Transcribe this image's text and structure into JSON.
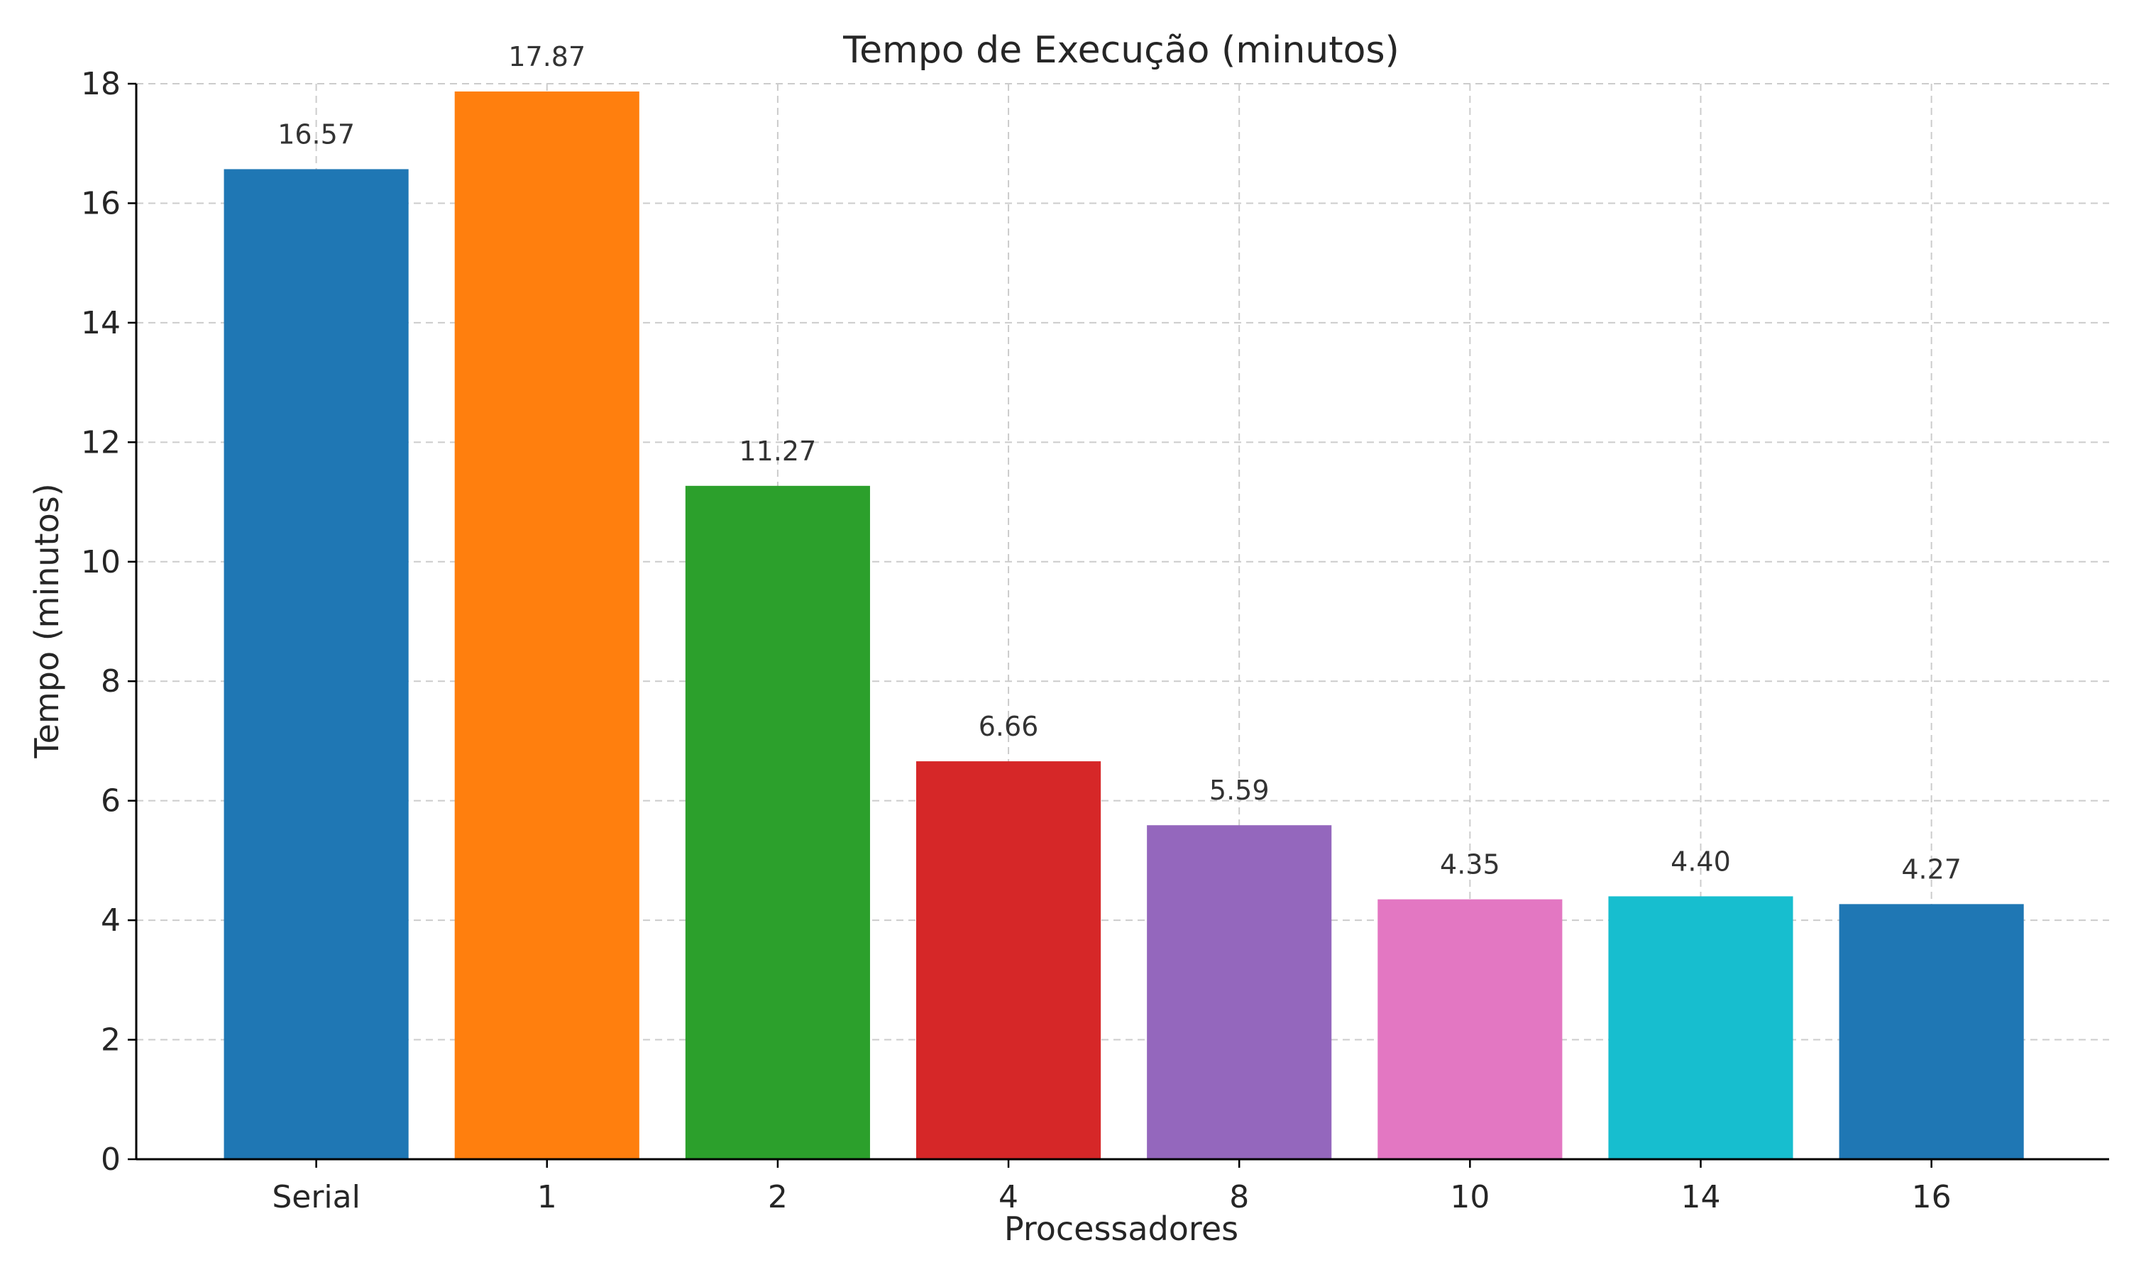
{
  "chart_data": {
    "type": "bar",
    "title": "Tempo de Execução (minutos)",
    "xlabel": "Processadores",
    "ylabel": "Tempo (minutos)",
    "categories": [
      "Serial",
      "1",
      "2",
      "4",
      "8",
      "10",
      "14",
      "16"
    ],
    "values": [
      16.57,
      17.87,
      11.27,
      6.66,
      5.59,
      4.35,
      4.4,
      4.27
    ],
    "data_labels": [
      "16.57",
      "17.87",
      "11.27",
      "6.66",
      "5.59",
      "4.35",
      "4.40",
      "4.27"
    ],
    "colors": [
      "#1f77b4",
      "#ff7f0e",
      "#2ca02c",
      "#d62728",
      "#9467bd",
      "#e377c2",
      "#17becf",
      "#1f77b4"
    ],
    "ylim": [
      0,
      18
    ],
    "yticks": [
      0,
      2,
      4,
      6,
      8,
      10,
      12,
      14,
      16,
      18
    ],
    "grid": true
  }
}
